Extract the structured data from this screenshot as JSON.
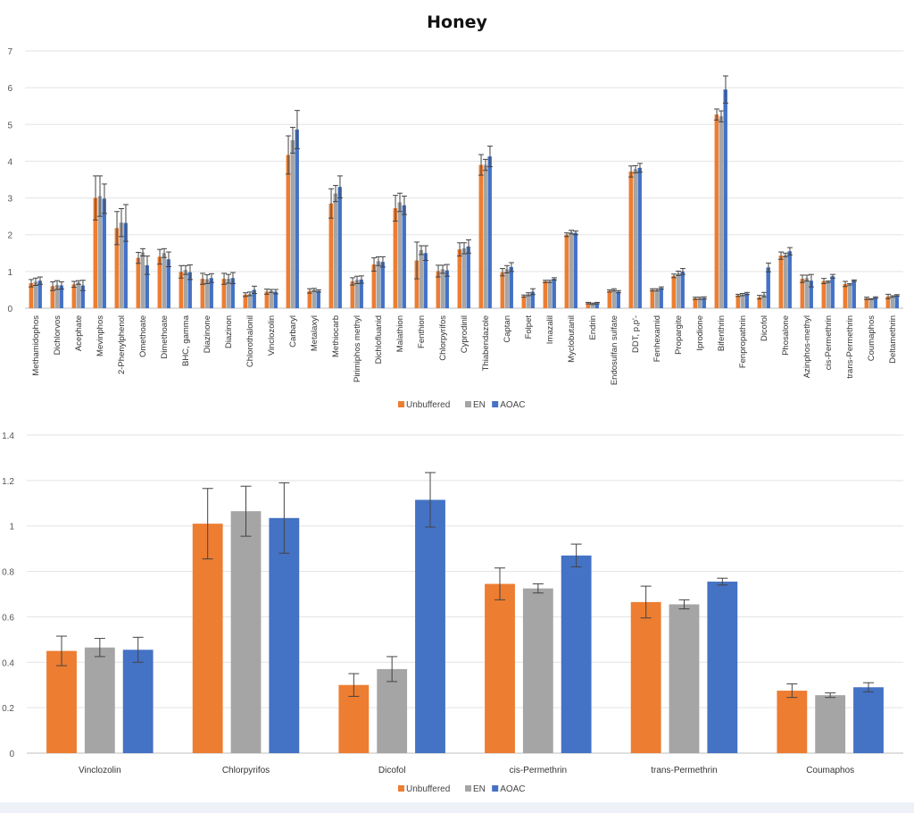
{
  "chart_data": [
    {
      "type": "bar",
      "title": "Honey",
      "xlabel": "",
      "ylabel": "",
      "ylim": [
        0,
        7
      ],
      "yticks": [
        0,
        1,
        2,
        3,
        4,
        5,
        6,
        7
      ],
      "grid": true,
      "legend_position": "bottom",
      "error_bars": true,
      "categories": [
        "Methamidophos",
        "Dichlorvos",
        "Acephate",
        "Mevinphos",
        "2-Phenylphenol",
        "Omethoate",
        "Dimethoate",
        "BHC, gamma",
        "Diazinone",
        "Diazinon",
        "Chlorothalonil",
        "Vinclozolin",
        "Carbaryl",
        "Metalaxyl",
        "Methiocarb",
        "Pirimiphos methyl",
        "Dichlofluanid",
        "Malathion",
        "Fenthion",
        "Chlorpyrifos",
        "Cyprodinil",
        "Thiabendazole",
        "Captan",
        "Folpet",
        "Imazalil",
        "Myclobutanil",
        "Endrin",
        "Endosulfan sulfate",
        "DDT, p,p'-",
        "Fenhexamid",
        "Propargite",
        "Iprodione",
        "Bifenthrin",
        "Fenpropathrin",
        "Dicofol",
        "Phosalone",
        "Azinphos-methyl",
        "cis-Permethrin",
        "trans-Permethrin",
        "Coumaphos",
        "Deltamethrin"
      ],
      "series": [
        {
          "name": "Unbuffered",
          "color": "#ED7D31",
          "values": [
            0.68,
            0.6,
            0.65,
            3.0,
            2.18,
            1.37,
            1.4,
            0.99,
            0.8,
            0.8,
            0.37,
            0.45,
            4.17,
            0.47,
            2.85,
            0.73,
            1.19,
            2.72,
            1.3,
            1.01,
            1.6,
            3.9,
            0.98,
            0.33,
            0.73,
            2.0,
            0.14,
            0.47,
            3.72,
            0.5,
            0.88,
            0.27,
            5.27,
            0.35,
            0.3,
            1.43,
            0.8,
            0.74,
            0.66,
            0.27,
            0.32
          ],
          "errors": [
            0.1,
            0.12,
            0.08,
            0.6,
            0.45,
            0.15,
            0.2,
            0.17,
            0.15,
            0.15,
            0.05,
            0.07,
            0.52,
            0.06,
            0.4,
            0.1,
            0.18,
            0.35,
            0.5,
            0.16,
            0.18,
            0.28,
            0.1,
            0.03,
            0.03,
            0.05,
            0.02,
            0.03,
            0.15,
            0.03,
            0.05,
            0.03,
            0.15,
            0.03,
            0.05,
            0.1,
            0.1,
            0.07,
            0.07,
            0.03,
            0.06
          ]
        },
        {
          "name": "EN",
          "color": "#A5A5A5",
          "values": [
            0.72,
            0.63,
            0.7,
            3.05,
            2.33,
            1.52,
            1.5,
            1.04,
            0.79,
            0.8,
            0.39,
            0.47,
            4.57,
            0.5,
            3.12,
            0.77,
            1.28,
            2.88,
            1.58,
            1.06,
            1.63,
            3.9,
            1.06,
            0.38,
            0.73,
            2.07,
            0.12,
            0.5,
            3.78,
            0.5,
            0.95,
            0.27,
            5.22,
            0.37,
            0.37,
            1.45,
            0.82,
            0.72,
            0.65,
            0.25,
            0.32
          ],
          "errors": [
            0.1,
            0.12,
            0.05,
            0.55,
            0.38,
            0.1,
            0.12,
            0.12,
            0.12,
            0.12,
            0.05,
            0.04,
            0.35,
            0.04,
            0.22,
            0.1,
            0.12,
            0.25,
            0.12,
            0.11,
            0.15,
            0.15,
            0.1,
            0.04,
            0.03,
            0.05,
            0.02,
            0.03,
            0.1,
            0.03,
            0.06,
            0.03,
            0.15,
            0.03,
            0.06,
            0.05,
            0.08,
            0.02,
            0.02,
            0.01,
            0.02
          ]
        },
        {
          "name": "AOAC",
          "color": "#4472C4",
          "values": [
            0.75,
            0.62,
            0.62,
            2.98,
            2.32,
            1.17,
            1.33,
            0.98,
            0.82,
            0.82,
            0.5,
            0.45,
            4.86,
            0.47,
            3.3,
            0.78,
            1.26,
            2.8,
            1.5,
            1.03,
            1.68,
            4.13,
            1.12,
            0.45,
            0.8,
            2.05,
            0.14,
            0.45,
            3.82,
            0.55,
            1.0,
            0.28,
            5.95,
            0.4,
            1.11,
            1.55,
            0.75,
            0.87,
            0.75,
            0.29,
            0.35
          ],
          "errors": [
            0.1,
            0.1,
            0.14,
            0.4,
            0.5,
            0.25,
            0.2,
            0.2,
            0.12,
            0.15,
            0.1,
            0.06,
            0.52,
            0.03,
            0.3,
            0.1,
            0.14,
            0.25,
            0.2,
            0.16,
            0.18,
            0.28,
            0.12,
            0.08,
            0.03,
            0.05,
            0.02,
            0.03,
            0.12,
            0.03,
            0.08,
            0.03,
            0.37,
            0.03,
            0.12,
            0.1,
            0.17,
            0.05,
            0.02,
            0.02,
            0.02
          ]
        }
      ]
    },
    {
      "type": "bar",
      "title": "",
      "xlabel": "",
      "ylabel": "",
      "ylim": [
        0,
        1.4
      ],
      "yticks": [
        0,
        0.2,
        0.4,
        0.6,
        0.8,
        1,
        1.2,
        1.4
      ],
      "grid": true,
      "legend_position": "bottom",
      "error_bars": true,
      "categories": [
        "Vinclozolin",
        "Chlorpyrifos",
        "Dicofol",
        "cis-Permethrin",
        "trans-Permethrin",
        "Coumaphos"
      ],
      "series": [
        {
          "name": "Unbuffered",
          "color": "#ED7D31",
          "values": [
            0.45,
            1.01,
            0.3,
            0.745,
            0.665,
            0.275
          ],
          "errors": [
            0.065,
            0.155,
            0.05,
            0.07,
            0.07,
            0.03
          ]
        },
        {
          "name": "EN",
          "color": "#A5A5A5",
          "values": [
            0.465,
            1.065,
            0.37,
            0.725,
            0.655,
            0.255
          ],
          "errors": [
            0.04,
            0.11,
            0.055,
            0.02,
            0.02,
            0.01
          ]
        },
        {
          "name": "AOAC",
          "color": "#4472C4",
          "values": [
            0.455,
            1.035,
            1.115,
            0.87,
            0.755,
            0.29
          ],
          "errors": [
            0.055,
            0.155,
            0.12,
            0.05,
            0.015,
            0.02
          ]
        }
      ]
    }
  ]
}
